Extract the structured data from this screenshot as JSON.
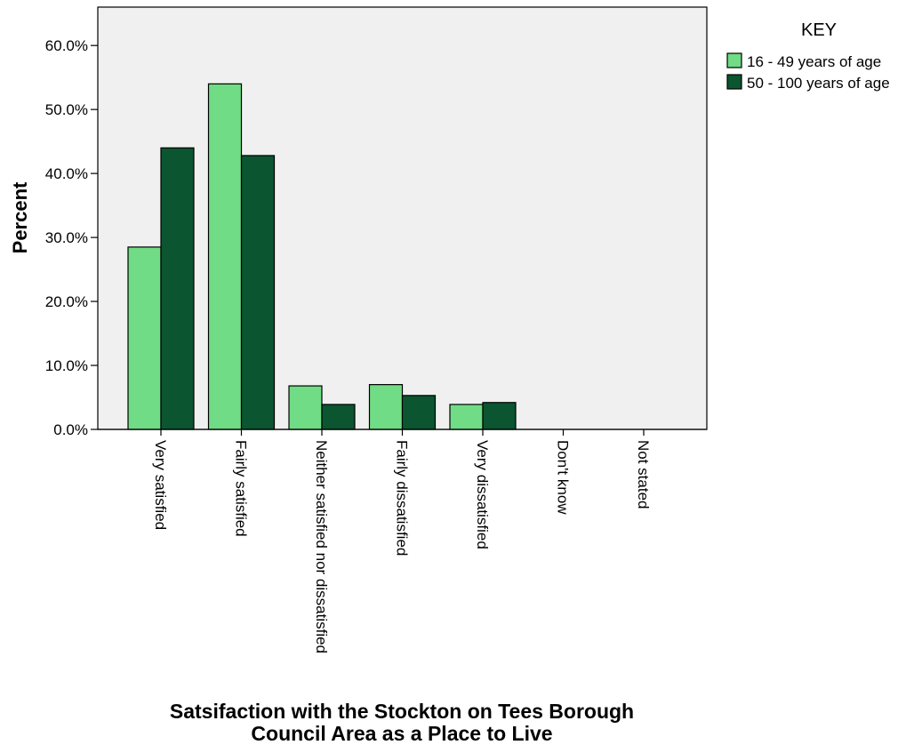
{
  "chart_data": {
    "type": "bar",
    "title": "",
    "xlabel": "Satsifaction with the Stockton on Tees Borough Council Area as a Place to Live",
    "xlabel_lines": [
      "Satsifaction with the Stockton on Tees Borough",
      "Council Area as a Place to Live"
    ],
    "ylabel": "Percent",
    "ylim": [
      0,
      66
    ],
    "yticks": [
      0,
      10,
      20,
      30,
      40,
      50,
      60
    ],
    "ytick_labels": [
      "0.0%",
      "10.0%",
      "20.0%",
      "30.0%",
      "40.0%",
      "50.0%",
      "60.0%"
    ],
    "grid": false,
    "categories": [
      "Very satisfied",
      "Fairly satisfied",
      "Neither satisfied nor dissatisfied",
      "Fairly dissatisfied",
      "Very dissatisfied",
      "Don't know",
      "Not stated"
    ],
    "series": [
      {
        "name": "16 - 49 years of age",
        "color": "#70dc85",
        "values": [
          28.5,
          54.0,
          6.8,
          7.0,
          3.9,
          0.0,
          0.0
        ]
      },
      {
        "name": "50 - 100 years of age",
        "color": "#0b5530",
        "values": [
          44.0,
          42.8,
          3.9,
          5.3,
          4.2,
          0.0,
          0.0
        ]
      }
    ],
    "legend": {
      "title": "KEY",
      "placement": "top-right, outside plot"
    },
    "plot_background": "#f0f0f0"
  }
}
